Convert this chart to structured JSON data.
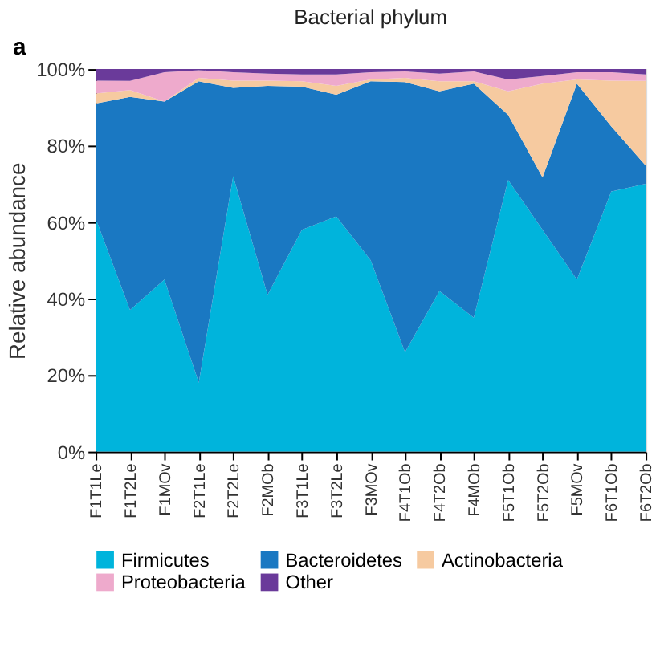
{
  "chart_data": {
    "type": "area",
    "stacked": true,
    "title": "Bacterial phylum",
    "ylabel": "Relative abundance",
    "annotations": [
      "a"
    ],
    "categories": [
      "F1T1Le",
      "F1T2Le",
      "F1MOv",
      "F2T1Le",
      "F2T2Le",
      "F2MOb",
      "F3T1Le",
      "F3T2Le",
      "F3MOv",
      "F4T1Ob",
      "F4T2Ob",
      "F4MOb",
      "F5T1Ob",
      "F5T2Ob",
      "F5MOv",
      "F6T1Ob",
      "F6T2Ob"
    ],
    "ylim": [
      0,
      100
    ],
    "yticks": [
      {
        "value": 0,
        "label": "0%"
      },
      {
        "value": 20,
        "label": "20%"
      },
      {
        "value": 40,
        "label": "40%"
      },
      {
        "value": 60,
        "label": "60%"
      },
      {
        "value": 80,
        "label": "80%"
      },
      {
        "value": 100,
        "label": "100%"
      }
    ],
    "grid": false,
    "legend": "bottom",
    "series": [
      {
        "name": "Firmicutes",
        "color": "#00b4dc",
        "values": [
          61,
          37,
          45,
          18,
          72,
          41,
          58,
          61.5,
          50,
          26,
          42,
          35,
          71,
          58,
          45,
          68,
          70
        ]
      },
      {
        "name": "Bacteroidetes",
        "color": "#1a78c2",
        "values": [
          30,
          55.7,
          46.5,
          78.8,
          23.1,
          54.6,
          37.4,
          31.8,
          46.8,
          70.6,
          52.2,
          61.2,
          17,
          13.7,
          51.2,
          17,
          4.8
        ]
      },
      {
        "name": "Actinobacteria",
        "color": "#f6caa0",
        "values": [
          2.6,
          1.8,
          0,
          0.9,
          1.9,
          1.4,
          1.4,
          2.3,
          0.5,
          1.1,
          2.6,
          0.6,
          6.2,
          24.5,
          1.1,
          12,
          22.1
        ]
      },
      {
        "name": "Proteobacteria",
        "color": "#eeaacc",
        "values": [
          3.4,
          2.4,
          7.7,
          2,
          2.2,
          1.8,
          1.8,
          3,
          1.9,
          1.7,
          2,
          2.6,
          3.1,
          2,
          1.9,
          2.2,
          1.7
        ]
      },
      {
        "name": "Other",
        "color": "#6a3a9a",
        "values": [
          3,
          3.1,
          0.8,
          0.3,
          0.8,
          1.2,
          1.4,
          1.4,
          0.8,
          0.6,
          1.2,
          0.6,
          2.7,
          1.8,
          0.8,
          0.8,
          1.4
        ]
      }
    ]
  }
}
